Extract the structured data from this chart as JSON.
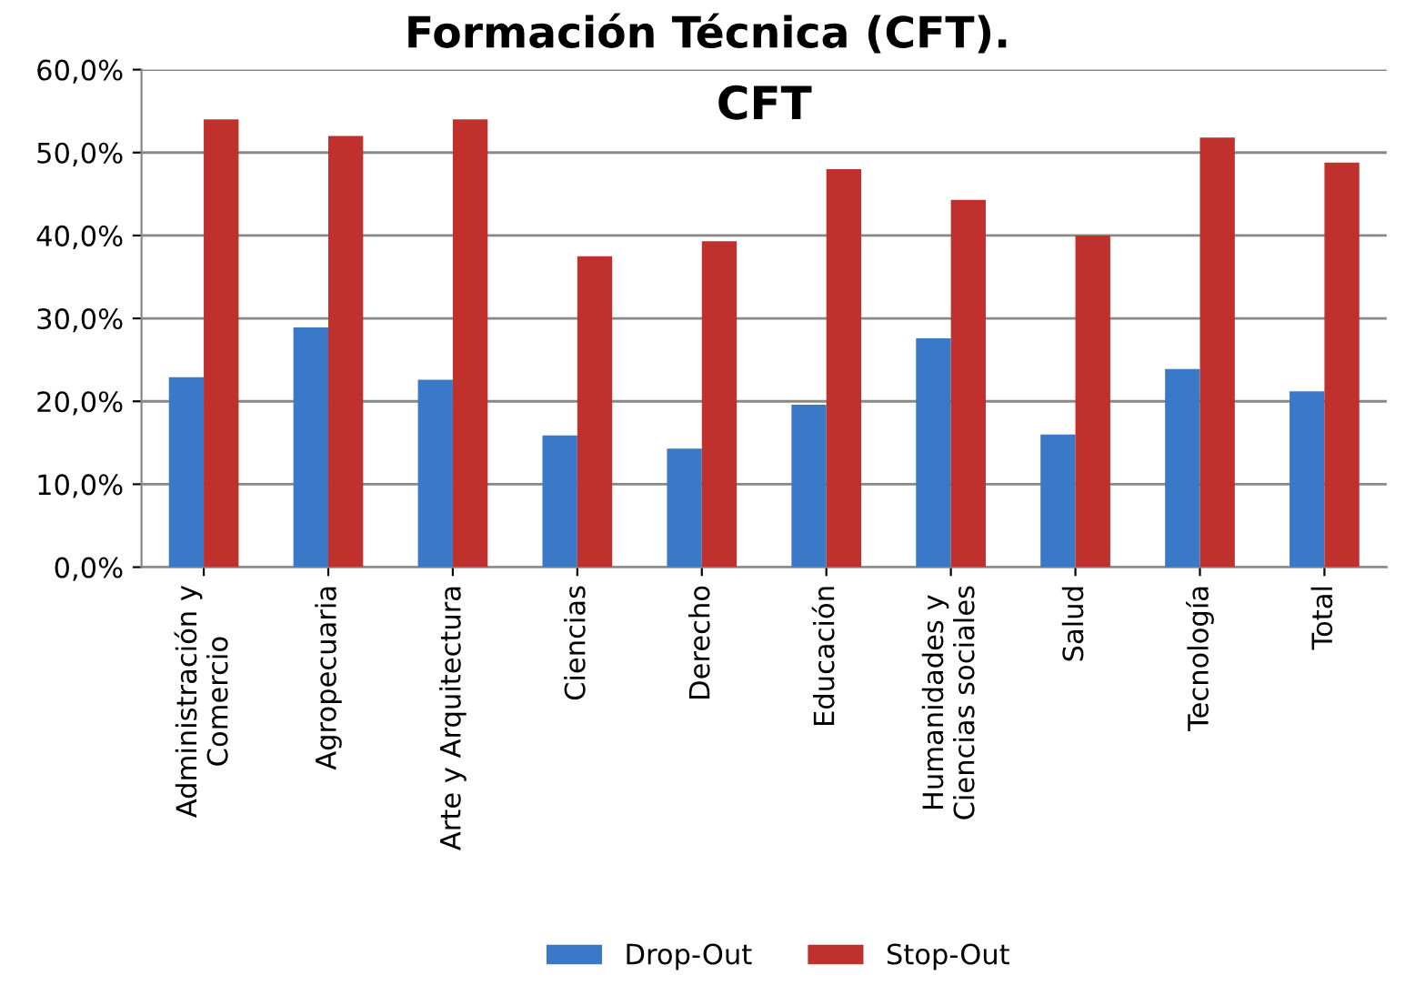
{
  "chart_data": {
    "type": "bar",
    "title": "Formación Técnica (CFT).",
    "subtitle": "CFT",
    "categories": [
      "Administración y\nComercio",
      "Agropecuaria",
      "Arte y Arquitectura",
      "Ciencias",
      "Derecho",
      "Educación",
      "Humanidades y\nCiencias sociales",
      "Salud",
      "Tecnología",
      "Total"
    ],
    "series": [
      {
        "name": "Drop-Out",
        "color": "#3a78c8",
        "values": [
          22.9,
          28.9,
          22.6,
          15.9,
          14.3,
          19.6,
          27.6,
          16.0,
          23.9,
          21.2
        ]
      },
      {
        "name": "Stop-Out",
        "color": "#c0302c",
        "values": [
          54.0,
          52.0,
          54.0,
          37.5,
          39.3,
          48.0,
          44.3,
          40.0,
          51.8,
          48.8
        ]
      }
    ],
    "ylim": [
      0,
      60
    ],
    "yticks": [
      {
        "value": 0,
        "label": "0,0%"
      },
      {
        "value": 10,
        "label": "10,0%"
      },
      {
        "value": 20,
        "label": "20,0%"
      },
      {
        "value": 30,
        "label": "30,0%"
      },
      {
        "value": 40,
        "label": "40,0%"
      },
      {
        "value": 50,
        "label": "50,0%"
      },
      {
        "value": 60,
        "label": "60,0%"
      }
    ],
    "grid": "y",
    "legend": "bottom"
  }
}
